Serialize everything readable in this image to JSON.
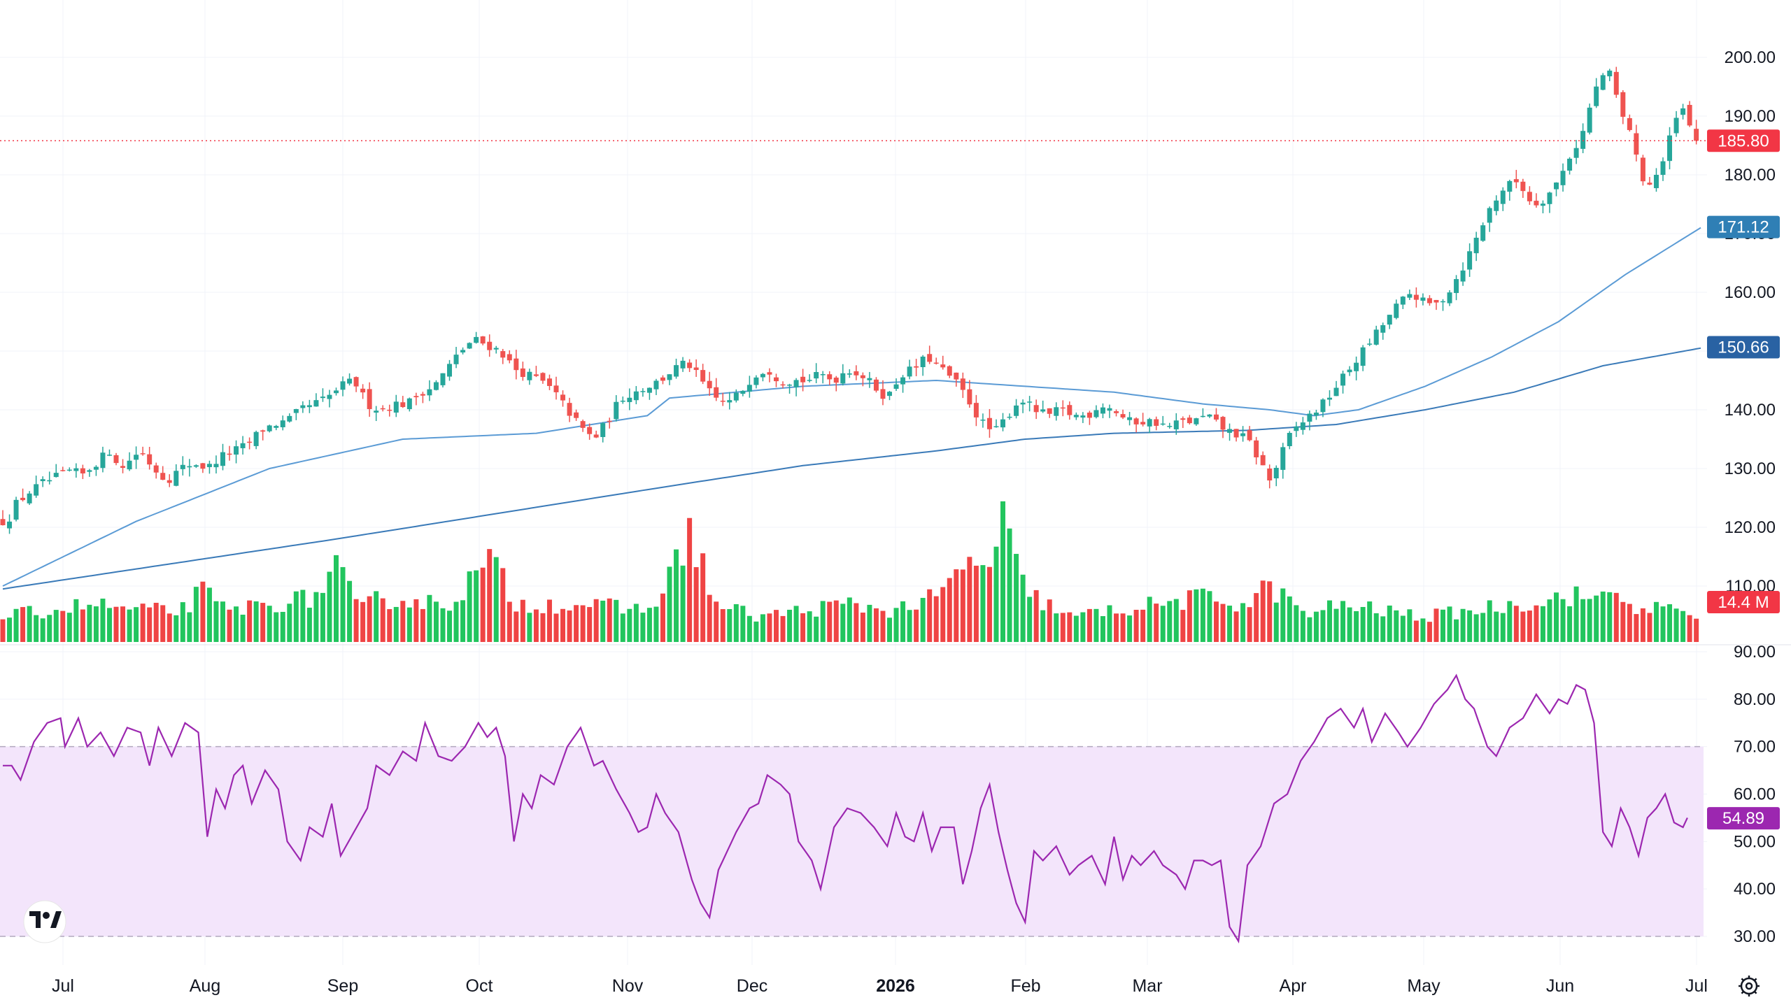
{
  "chart_data": {
    "type": "candlestick",
    "colors": {
      "up": "#26a69a",
      "down": "#ef5350",
      "volume_up": "#22c55e",
      "volume_down": "#ef4444",
      "ma_short": "#5b9bd5",
      "ma_long": "#3a7ab8",
      "rsi_line": "#9c27b0",
      "rsi_band": "#f3e5fb",
      "last_price_tag": "#f23645",
      "rsi_tag": "#9c27b0",
      "ma_short_tag": "#2f7fb5",
      "ma_long_tag": "#2962a3",
      "volume_tag": "#f23645"
    },
    "price_axis": {
      "ticks": [
        "200.00",
        "190.00",
        "180.00",
        "170.00",
        "160.00",
        "150.00",
        "140.00",
        "130.00",
        "120.00",
        "110.00"
      ],
      "range": [
        106,
        201
      ]
    },
    "rsi_axis": {
      "ticks": [
        "90.00",
        "80.00",
        "70.00",
        "60.00",
        "50.00",
        "40.00",
        "30.00"
      ],
      "range": [
        29,
        91
      ],
      "band": [
        30,
        70
      ]
    },
    "time_axis": {
      "labels": [
        "Jul",
        "Aug",
        "Sep",
        "Oct",
        "Nov",
        "Dec",
        "2026",
        "Feb",
        "Mar",
        "Apr",
        "May",
        "Jun",
        "Jul"
      ],
      "bold": "2026"
    },
    "last_price": {
      "label": "185.80",
      "value": 185.8
    },
    "ma_short_value": {
      "label": "171.12",
      "value": 171.12
    },
    "ma_long_value": {
      "label": "150.66",
      "value": 150.66
    },
    "volume_value": {
      "label": "14.4 M"
    },
    "rsi_value": {
      "label": "54.89",
      "value": 54.89
    },
    "price_path": [
      [
        0,
        121
      ],
      [
        4,
        121
      ],
      [
        8,
        124
      ],
      [
        14,
        126
      ],
      [
        20,
        127.5
      ],
      [
        26,
        128.5
      ],
      [
        32,
        129.5
      ],
      [
        38,
        129
      ],
      [
        44,
        131
      ],
      [
        50,
        133
      ],
      [
        56,
        130
      ],
      [
        60,
        132
      ],
      [
        64,
        133
      ],
      [
        70,
        130
      ],
      [
        76,
        128
      ],
      [
        82,
        130
      ],
      [
        88,
        131
      ],
      [
        94,
        130
      ],
      [
        100,
        132
      ],
      [
        106,
        133
      ],
      [
        112,
        134
      ],
      [
        118,
        136.5
      ],
      [
        124,
        137.5
      ],
      [
        130,
        138
      ],
      [
        136,
        140
      ],
      [
        142,
        141
      ],
      [
        148,
        142
      ],
      [
        154,
        144
      ],
      [
        160,
        145
      ],
      [
        166,
        141
      ],
      [
        172,
        140
      ],
      [
        178,
        141
      ],
      [
        184,
        141
      ],
      [
        190,
        143
      ],
      [
        196,
        144
      ],
      [
        202,
        147
      ],
      [
        208,
        150
      ],
      [
        214,
        152
      ],
      [
        220,
        151
      ],
      [
        226,
        150
      ],
      [
        232,
        147
      ],
      [
        238,
        146
      ],
      [
        244,
        145
      ],
      [
        250,
        143
      ],
      [
        256,
        140
      ],
      [
        262,
        137
      ],
      [
        268,
        135
      ],
      [
        274,
        138
      ],
      [
        280,
        142
      ],
      [
        286,
        143
      ],
      [
        292,
        144
      ],
      [
        298,
        145
      ],
      [
        304,
        147
      ],
      [
        310,
        148
      ],
      [
        316,
        145
      ],
      [
        322,
        142
      ],
      [
        328,
        141
      ],
      [
        334,
        143
      ],
      [
        340,
        146
      ],
      [
        346,
        147
      ],
      [
        352,
        145
      ],
      [
        358,
        145
      ],
      [
        364,
        145
      ],
      [
        370,
        146
      ],
      [
        376,
        145
      ],
      [
        382,
        147
      ],
      [
        388,
        146
      ],
      [
        394,
        144
      ],
      [
        400,
        142
      ],
      [
        406,
        146
      ],
      [
        412,
        147
      ],
      [
        418,
        149
      ],
      [
        424,
        147
      ],
      [
        430,
        145
      ],
      [
        436,
        142
      ],
      [
        442,
        138
      ],
      [
        448,
        136
      ],
      [
        454,
        139
      ],
      [
        460,
        142
      ],
      [
        466,
        140
      ],
      [
        472,
        139
      ],
      [
        478,
        140
      ],
      [
        484,
        139
      ],
      [
        490,
        139
      ],
      [
        496,
        141
      ],
      [
        502,
        140
      ],
      [
        508,
        138
      ],
      [
        514,
        138
      ],
      [
        520,
        138
      ],
      [
        526,
        137
      ],
      [
        532,
        138
      ],
      [
        538,
        138
      ],
      [
        544,
        139
      ],
      [
        550,
        137
      ],
      [
        556,
        136
      ],
      [
        562,
        135
      ],
      [
        568,
        131
      ],
      [
        572,
        128
      ],
      [
        576,
        131
      ],
      [
        580,
        135
      ],
      [
        584,
        137
      ],
      [
        590,
        139
      ],
      [
        596,
        141
      ],
      [
        600,
        143
      ],
      [
        606,
        146
      ],
      [
        612,
        149
      ],
      [
        618,
        152
      ],
      [
        624,
        155
      ],
      [
        630,
        158
      ],
      [
        636,
        160
      ],
      [
        642,
        158
      ],
      [
        648,
        158
      ],
      [
        654,
        161
      ],
      [
        660,
        165
      ],
      [
        666,
        170
      ],
      [
        672,
        175
      ],
      [
        678,
        178
      ],
      [
        684,
        179
      ],
      [
        690,
        175
      ],
      [
        696,
        176
      ],
      [
        702,
        179
      ],
      [
        708,
        184
      ],
      [
        712,
        186
      ],
      [
        718,
        194
      ],
      [
        722,
        197
      ],
      [
        726,
        197
      ],
      [
        730,
        190
      ],
      [
        734,
        188
      ],
      [
        738,
        181
      ],
      [
        742,
        178
      ],
      [
        746,
        180
      ],
      [
        750,
        183
      ],
      [
        754,
        189
      ],
      [
        758,
        191
      ],
      [
        762,
        187
      ],
      [
        764,
        185.8
      ]
    ],
    "ma_short_path": [
      [
        0,
        110
      ],
      [
        60,
        121
      ],
      [
        120,
        130
      ],
      [
        180,
        135
      ],
      [
        240,
        136
      ],
      [
        290,
        139
      ],
      [
        300,
        142
      ],
      [
        360,
        144
      ],
      [
        420,
        145
      ],
      [
        460,
        144
      ],
      [
        500,
        143
      ],
      [
        540,
        141
      ],
      [
        570,
        140
      ],
      [
        590,
        139
      ],
      [
        610,
        140
      ],
      [
        640,
        144
      ],
      [
        670,
        149
      ],
      [
        700,
        155
      ],
      [
        730,
        163
      ],
      [
        764,
        171
      ]
    ],
    "ma_long_path": [
      [
        0,
        109.5
      ],
      [
        150,
        118
      ],
      [
        300,
        127
      ],
      [
        360,
        130.5
      ],
      [
        420,
        133
      ],
      [
        460,
        135
      ],
      [
        500,
        136
      ],
      [
        560,
        136.5
      ],
      [
        600,
        137.5
      ],
      [
        640,
        140
      ],
      [
        680,
        143
      ],
      [
        720,
        147.5
      ],
      [
        764,
        150.5
      ]
    ],
    "rsi_path": [
      [
        0,
        66
      ],
      [
        4,
        66
      ],
      [
        8,
        63
      ],
      [
        14,
        71
      ],
      [
        20,
        75
      ],
      [
        26,
        76
      ],
      [
        28,
        70
      ],
      [
        34,
        76
      ],
      [
        38,
        70
      ],
      [
        44,
        73
      ],
      [
        50,
        68
      ],
      [
        56,
        74
      ],
      [
        62,
        73
      ],
      [
        66,
        66
      ],
      [
        70,
        74
      ],
      [
        76,
        68
      ],
      [
        82,
        75
      ],
      [
        88,
        73
      ],
      [
        92,
        51
      ],
      [
        96,
        61
      ],
      [
        100,
        57
      ],
      [
        104,
        64
      ],
      [
        108,
        66
      ],
      [
        112,
        58
      ],
      [
        118,
        65
      ],
      [
        124,
        61
      ],
      [
        128,
        50
      ],
      [
        134,
        46
      ],
      [
        138,
        53
      ],
      [
        144,
        51
      ],
      [
        148,
        58
      ],
      [
        152,
        47
      ],
      [
        158,
        52
      ],
      [
        164,
        57
      ],
      [
        168,
        66
      ],
      [
        174,
        64
      ],
      [
        180,
        69
      ],
      [
        186,
        67
      ],
      [
        190,
        75
      ],
      [
        196,
        68
      ],
      [
        202,
        67
      ],
      [
        208,
        70
      ],
      [
        214,
        75
      ],
      [
        218,
        72
      ],
      [
        222,
        74
      ],
      [
        226,
        68
      ],
      [
        230,
        50
      ],
      [
        234,
        60
      ],
      [
        238,
        57
      ],
      [
        242,
        64
      ],
      [
        248,
        62
      ],
      [
        254,
        70
      ],
      [
        260,
        74
      ],
      [
        266,
        66
      ],
      [
        270,
        67
      ],
      [
        276,
        61
      ],
      [
        282,
        56
      ],
      [
        286,
        52
      ],
      [
        290,
        53
      ],
      [
        294,
        60
      ],
      [
        298,
        56
      ],
      [
        304,
        52
      ],
      [
        310,
        42
      ],
      [
        314,
        37
      ],
      [
        318,
        34
      ],
      [
        322,
        44
      ],
      [
        326,
        48
      ],
      [
        330,
        52
      ],
      [
        336,
        57
      ],
      [
        340,
        58
      ],
      [
        344,
        64
      ],
      [
        350,
        62
      ],
      [
        354,
        60
      ],
      [
        358,
        50
      ],
      [
        364,
        46
      ],
      [
        368,
        40
      ],
      [
        374,
        53
      ],
      [
        380,
        57
      ],
      [
        386,
        56
      ],
      [
        392,
        53
      ],
      [
        398,
        49
      ],
      [
        402,
        56
      ],
      [
        406,
        51
      ],
      [
        410,
        50
      ],
      [
        414,
        56
      ],
      [
        418,
        48
      ],
      [
        422,
        53
      ],
      [
        428,
        53
      ],
      [
        432,
        41
      ],
      [
        436,
        48
      ],
      [
        440,
        57
      ],
      [
        444,
        62
      ],
      [
        448,
        52
      ],
      [
        452,
        44
      ],
      [
        456,
        37
      ],
      [
        460,
        33
      ],
      [
        464,
        48
      ],
      [
        468,
        46
      ],
      [
        474,
        49
      ],
      [
        480,
        43
      ],
      [
        484,
        45
      ],
      [
        490,
        47
      ],
      [
        496,
        41
      ],
      [
        500,
        51
      ],
      [
        504,
        42
      ],
      [
        508,
        47
      ],
      [
        512,
        45
      ],
      [
        518,
        48
      ],
      [
        522,
        45
      ],
      [
        528,
        43
      ],
      [
        532,
        40
      ],
      [
        536,
        46
      ],
      [
        540,
        46
      ],
      [
        544,
        45
      ],
      [
        548,
        46
      ],
      [
        552,
        32
      ],
      [
        556,
        29
      ],
      [
        560,
        45
      ],
      [
        566,
        49
      ],
      [
        572,
        58
      ],
      [
        578,
        60
      ],
      [
        584,
        67
      ],
      [
        590,
        71
      ],
      [
        596,
        76
      ],
      [
        602,
        78
      ],
      [
        608,
        74
      ],
      [
        612,
        78
      ],
      [
        616,
        71
      ],
      [
        622,
        77
      ],
      [
        628,
        73
      ],
      [
        632,
        70
      ],
      [
        638,
        74
      ],
      [
        644,
        79
      ],
      [
        650,
        82
      ],
      [
        654,
        85
      ],
      [
        658,
        80
      ],
      [
        662,
        78
      ],
      [
        668,
        70
      ],
      [
        672,
        68
      ],
      [
        678,
        74
      ],
      [
        684,
        76
      ],
      [
        690,
        81
      ],
      [
        696,
        77
      ],
      [
        700,
        80
      ],
      [
        704,
        79
      ],
      [
        708,
        83
      ],
      [
        712,
        82
      ],
      [
        716,
        75
      ],
      [
        720,
        52
      ],
      [
        724,
        49
      ],
      [
        728,
        57
      ],
      [
        732,
        53
      ],
      [
        736,
        47
      ],
      [
        740,
        55
      ],
      [
        744,
        57
      ],
      [
        748,
        60
      ],
      [
        752,
        54
      ],
      [
        756,
        53
      ],
      [
        758,
        55
      ]
    ],
    "volume_path": [
      [
        0,
        4
      ],
      [
        20,
        5
      ],
      [
        40,
        6
      ],
      [
        60,
        5
      ],
      [
        80,
        5
      ],
      [
        90,
        8
      ],
      [
        100,
        5
      ],
      [
        120,
        6
      ],
      [
        140,
        7
      ],
      [
        150,
        12
      ],
      [
        160,
        5
      ],
      [
        170,
        7
      ],
      [
        200,
        6
      ],
      [
        220,
        13
      ],
      [
        230,
        6
      ],
      [
        260,
        6
      ],
      [
        290,
        5
      ],
      [
        300,
        10
      ],
      [
        310,
        18
      ],
      [
        320,
        6
      ],
      [
        340,
        4
      ],
      [
        360,
        5
      ],
      [
        380,
        6
      ],
      [
        400,
        5
      ],
      [
        420,
        7
      ],
      [
        440,
        14
      ],
      [
        444,
        11
      ],
      [
        450,
        19
      ],
      [
        455,
        13
      ],
      [
        460,
        8
      ],
      [
        480,
        4
      ],
      [
        500,
        5
      ],
      [
        520,
        6
      ],
      [
        540,
        7
      ],
      [
        560,
        6
      ],
      [
        570,
        9
      ],
      [
        580,
        6
      ],
      [
        590,
        4
      ],
      [
        600,
        6
      ],
      [
        620,
        5
      ],
      [
        640,
        4
      ],
      [
        660,
        5
      ],
      [
        680,
        6
      ],
      [
        700,
        7
      ],
      [
        710,
        8
      ],
      [
        715,
        5
      ],
      [
        720,
        9
      ],
      [
        730,
        6
      ],
      [
        750,
        5
      ],
      [
        764,
        4
      ]
    ]
  }
}
